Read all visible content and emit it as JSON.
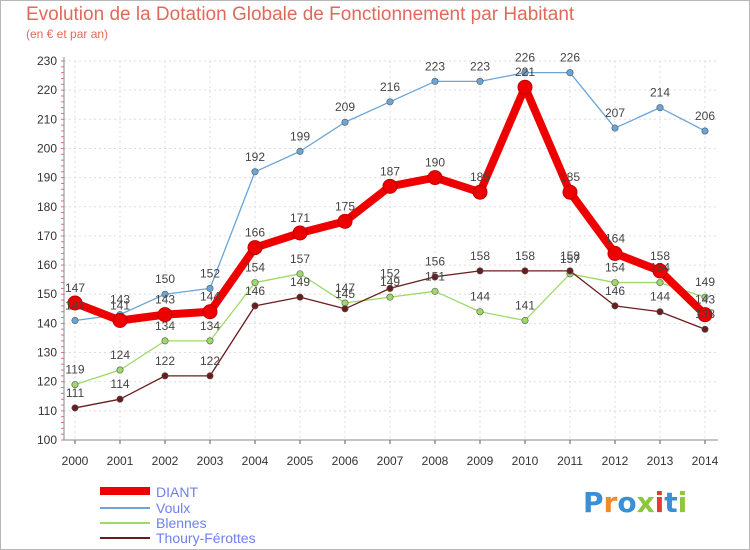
{
  "title": "Evolution de la Dotation Globale de Fonctionnement par Habitant",
  "subtitle": "(en € et par an)",
  "logo_text": "Proxiti",
  "colors": {
    "title": "#e06a5a",
    "diant": "#ee0000",
    "voulx": "#6aa5d8",
    "blennes": "#9fd96a",
    "thoury": "#6b1c1c",
    "grid": "#dddddd",
    "axis_text": "#333333"
  },
  "chart_data": {
    "type": "line",
    "title": "Evolution de la Dotation Globale de Fonctionnement par Habitant",
    "subtitle": "(en € et par an)",
    "xlabel": "",
    "ylabel": "",
    "ylim": [
      100,
      230
    ],
    "yticks": [
      100,
      110,
      120,
      130,
      140,
      150,
      160,
      170,
      180,
      190,
      200,
      210,
      220,
      230
    ],
    "categories": [
      "2000",
      "2001",
      "2002",
      "2003",
      "2004",
      "2005",
      "2006",
      "2007",
      "2008",
      "2009",
      "2010",
      "2011",
      "2012",
      "2013",
      "2014"
    ],
    "grid": true,
    "legend_position": "bottom-left",
    "series": [
      {
        "name": "DIANT",
        "key": "diant",
        "values": [
          147,
          141,
          143,
          144,
          166,
          171,
          175,
          187,
          190,
          185,
          221,
          185,
          164,
          158,
          143
        ]
      },
      {
        "name": "Voulx",
        "key": "voulx",
        "values": [
          141,
          143,
          150,
          152,
          192,
          199,
          209,
          216,
          223,
          223,
          226,
          226,
          207,
          214,
          206
        ]
      },
      {
        "name": "Blennes",
        "key": "blennes",
        "values": [
          119,
          124,
          134,
          134,
          154,
          157,
          147,
          149,
          151,
          144,
          141,
          157,
          154,
          154,
          149
        ]
      },
      {
        "name": "Thoury-Férottes",
        "key": "thoury",
        "values": [
          111,
          114,
          122,
          122,
          146,
          149,
          145,
          152,
          156,
          158,
          158,
          158,
          146,
          144,
          138
        ]
      }
    ]
  }
}
